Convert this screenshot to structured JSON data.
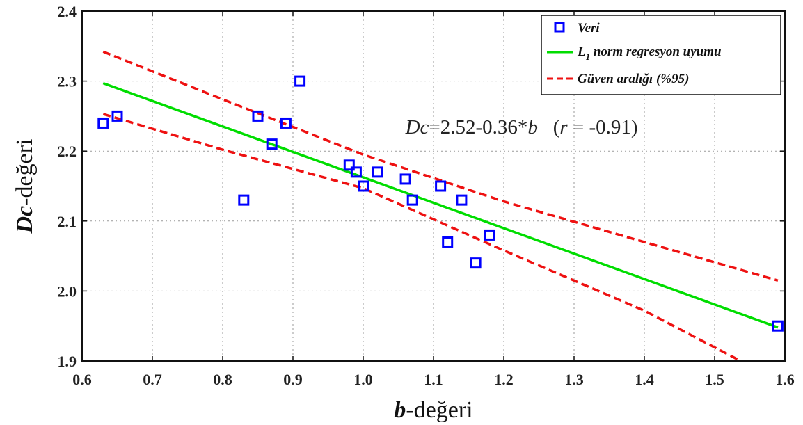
{
  "chart_data": {
    "type": "scatter",
    "xlabel": {
      "main": "b",
      "rest": "-değeri"
    },
    "ylabel": {
      "main": "Dc",
      "rest": "-değeri"
    },
    "xlim": [
      0.6,
      1.6
    ],
    "ylim": [
      1.9,
      2.4
    ],
    "xticks": [
      "0.6",
      "0.7",
      "0.8",
      "0.9",
      "1.0",
      "1.1",
      "1.2",
      "1.3",
      "1.4",
      "1.5",
      "1.6"
    ],
    "yticks": [
      "1.9",
      "2.0",
      "2.1",
      "2.2",
      "2.3",
      "2.4"
    ],
    "grid": true,
    "legend_position": "top-right",
    "series": [
      {
        "name": "Veri",
        "kind": "scatter",
        "color": "#0000ff",
        "marker": "square",
        "points": [
          [
            0.63,
            2.24
          ],
          [
            0.65,
            2.25
          ],
          [
            0.83,
            2.13
          ],
          [
            0.85,
            2.25
          ],
          [
            0.87,
            2.21
          ],
          [
            0.89,
            2.24
          ],
          [
            0.91,
            2.3
          ],
          [
            0.98,
            2.18
          ],
          [
            0.99,
            2.17
          ],
          [
            1.0,
            2.15
          ],
          [
            1.02,
            2.17
          ],
          [
            1.06,
            2.16
          ],
          [
            1.07,
            2.13
          ],
          [
            1.11,
            2.15
          ],
          [
            1.12,
            2.07
          ],
          [
            1.14,
            2.13
          ],
          [
            1.16,
            2.04
          ],
          [
            1.18,
            2.08
          ],
          [
            1.59,
            1.95
          ]
        ]
      },
      {
        "name": "L",
        "name_sub": "1",
        "name_rest": " norm regresyon uyumu",
        "kind": "line",
        "color": "#00dd00",
        "style": "solid",
        "points": [
          [
            0.63,
            2.297
          ],
          [
            1.59,
            1.948
          ]
        ]
      },
      {
        "name": "Güven aralığı (%95)",
        "kind": "line",
        "color": "#ee1111",
        "style": "dashed",
        "points": [
          [
            0.63,
            2.342
          ],
          [
            0.8,
            2.274
          ],
          [
            1.0,
            2.195
          ],
          [
            1.2,
            2.128
          ],
          [
            1.4,
            2.07
          ],
          [
            1.59,
            2.015
          ]
        ]
      },
      {
        "name": "Güven aralığı (%95) alt",
        "kind": "line",
        "color": "#ee1111",
        "style": "dashed",
        "legend": false,
        "points": [
          [
            0.63,
            2.253
          ],
          [
            0.8,
            2.202
          ],
          [
            1.0,
            2.147
          ],
          [
            1.2,
            2.058
          ],
          [
            1.4,
            1.972
          ],
          [
            1.56,
            1.888
          ]
        ]
      }
    ],
    "annotation": {
      "v1": "Dc",
      "eq": "=2.52-0.36*",
      "v2": "b",
      "paren_open": "   (",
      "v3": "r",
      "paren_rest": " = -0.91)",
      "x": 1.06,
      "y": 2.225
    }
  }
}
